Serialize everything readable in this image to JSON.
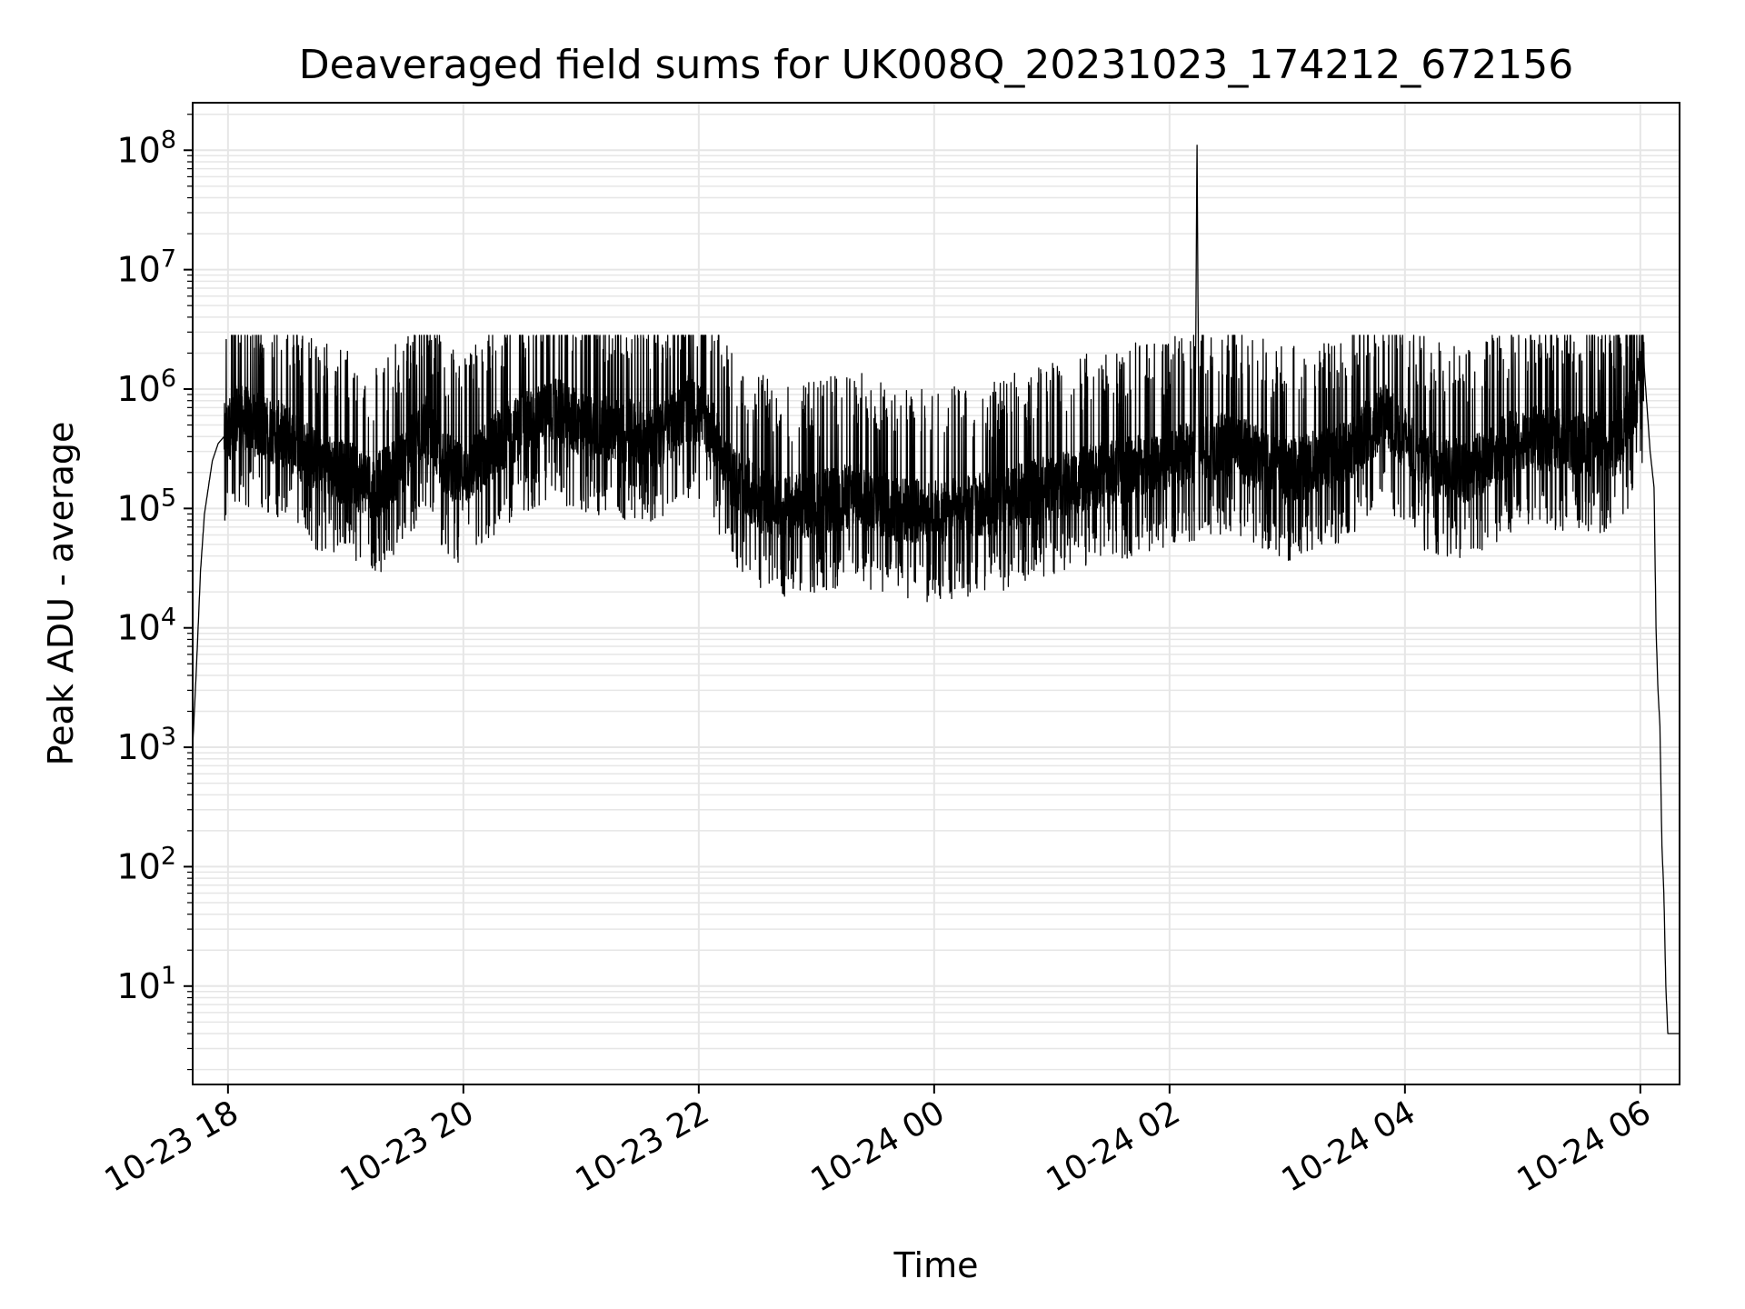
{
  "chart_data": {
    "type": "line",
    "title": "Deaveraged field sums for UK008Q_20231023_174212_672156",
    "xlabel": "Time",
    "ylabel": "Peak ADU - average",
    "yscale": "log",
    "ylim": [
      1.5,
      250000000
    ],
    "xlim": [
      "2023-10-23T17:42:00",
      "2023-10-24T06:20:00"
    ],
    "grid": true,
    "grid_minor": true,
    "line_color": "#000000",
    "grid_color": "#e6e6e6",
    "x_ticks": [
      {
        "value": "2023-10-23T18:00:00",
        "label": "10-23 18"
      },
      {
        "value": "2023-10-23T20:00:00",
        "label": "10-23 20"
      },
      {
        "value": "2023-10-23T22:00:00",
        "label": "10-23 22"
      },
      {
        "value": "2023-10-24T00:00:00",
        "label": "10-24 00"
      },
      {
        "value": "2023-10-24T02:00:00",
        "label": "10-24 02"
      },
      {
        "value": "2023-10-24T04:00:00",
        "label": "10-24 04"
      },
      {
        "value": "2023-10-24T06:00:00",
        "label": "10-24 06"
      }
    ],
    "y_ticks": [
      {
        "value": 10,
        "base": "10",
        "exp": "1"
      },
      {
        "value": 100,
        "base": "10",
        "exp": "2"
      },
      {
        "value": 1000,
        "base": "10",
        "exp": "3"
      },
      {
        "value": 10000,
        "base": "10",
        "exp": "4"
      },
      {
        "value": 100000,
        "base": "10",
        "exp": "5"
      },
      {
        "value": 1000000,
        "base": "10",
        "exp": "6"
      },
      {
        "value": 10000000,
        "base": "10",
        "exp": "7"
      },
      {
        "value": 100000000,
        "base": "10",
        "exp": "8"
      }
    ],
    "series": [
      {
        "x": [
          "2023-10-23T17:42:00",
          "2023-10-23T17:44:00",
          "2023-10-23T17:46:00",
          "2023-10-23T17:48:00",
          "2023-10-23T17:50:00",
          "2023-10-23T17:52:00",
          "2023-10-23T17:55:00",
          "2023-10-23T17:58:00",
          "2023-10-23T18:05:00",
          "2023-10-23T18:15:00",
          "2023-10-23T18:30:00",
          "2023-10-23T18:45:00",
          "2023-10-23T19:00:00",
          "2023-10-23T19:15:00",
          "2023-10-23T19:30:00",
          "2023-10-23T19:40:00",
          "2023-10-23T19:50:00",
          "2023-10-23T20:00:00",
          "2023-10-23T20:20:00",
          "2023-10-23T20:40:00",
          "2023-10-23T20:45:00",
          "2023-10-23T21:00:00",
          "2023-10-23T21:20:00",
          "2023-10-23T21:40:00",
          "2023-10-23T21:55:00",
          "2023-10-23T22:05:00",
          "2023-10-23T22:15:00",
          "2023-10-23T22:30:00",
          "2023-10-23T22:45:00",
          "2023-10-23T23:00:00",
          "2023-10-23T23:20:00",
          "2023-10-23T23:40:00",
          "2023-10-24T00:00:00",
          "2023-10-24T00:30:00",
          "2023-10-24T01:00:00",
          "2023-10-24T01:30:00",
          "2023-10-24T02:00:00",
          "2023-10-24T02:13:00",
          "2023-10-24T02:14:00",
          "2023-10-24T02:15:00",
          "2023-10-24T02:30:00",
          "2023-10-24T03:00:00",
          "2023-10-24T03:30:00",
          "2023-10-24T03:50:00",
          "2023-10-24T04:10:00",
          "2023-10-24T04:30:00",
          "2023-10-24T05:00:00",
          "2023-10-24T05:30:00",
          "2023-10-24T05:50:00",
          "2023-10-24T06:02:00",
          "2023-10-24T06:05:00",
          "2023-10-24T06:07:00",
          "2023-10-24T06:08:00",
          "2023-10-24T06:09:00",
          "2023-10-24T06:10:00",
          "2023-10-24T06:11:00",
          "2023-10-24T06:12:00",
          "2023-10-24T06:13:00",
          "2023-10-24T06:14:00",
          "2023-10-24T06:20:00"
        ],
        "y": [
          1000,
          5000,
          30000,
          90000,
          150000,
          250000,
          350000,
          400000,
          600000,
          500000,
          400000,
          250000,
          200000,
          150000,
          250000,
          500000,
          250000,
          180000,
          400000,
          600000,
          700000,
          500000,
          450000,
          400000,
          700000,
          500000,
          200000,
          120000,
          100000,
          110000,
          130000,
          100000,
          90000,
          110000,
          150000,
          200000,
          250000,
          300000,
          110000000,
          300000,
          350000,
          200000,
          300000,
          600000,
          250000,
          200000,
          400000,
          350000,
          350000,
          1500000,
          300000,
          150000,
          10000,
          3000,
          1500,
          150,
          60,
          10,
          4,
          4
        ]
      }
    ]
  }
}
